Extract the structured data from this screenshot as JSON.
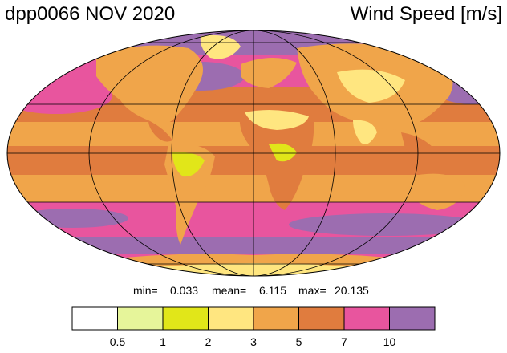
{
  "header": {
    "title_left": "dpp0066 NOV 2020",
    "title_right": "Wind Speed [m/s]"
  },
  "stats": {
    "min_label": "min=",
    "min_value": "0.033",
    "mean_label": "mean=",
    "mean_value": "6.115",
    "max_label": "max=",
    "max_value": "20.135"
  },
  "colorbar": {
    "colors": [
      "#ffffff",
      "#e6f59a",
      "#e1e619",
      "#ffe680",
      "#f0a54a",
      "#e07c3e",
      "#e8559e",
      "#9c6db0"
    ],
    "tick_labels": [
      "0.5",
      "1",
      "2",
      "3",
      "5",
      "7",
      "10"
    ]
  },
  "map": {
    "projection": "Mollweide",
    "variable": "wind speed"
  }
}
